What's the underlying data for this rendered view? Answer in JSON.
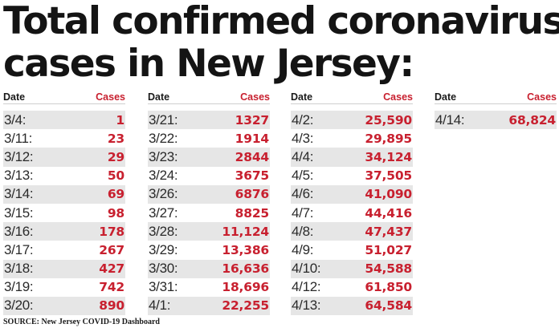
{
  "title": "Total confirmed coronavirus cases in New Jersey:",
  "title_line1": "Total confirmed coronavirus",
  "title_line2": "cases in New Jersey:",
  "header_date": "Date",
  "header_cases": "Cases",
  "source": "SOURCE: New Jersey COVID-19 Dashboard",
  "colors": {
    "cases": "#c8202f",
    "shade": "#e6e6e6",
    "text": "#1a1a1a"
  },
  "chart_data": {
    "type": "table",
    "columns": [
      "Date",
      "Cases"
    ],
    "rows": [
      {
        "date": "3/4:",
        "cases": "1"
      },
      {
        "date": "3/11:",
        "cases": "23"
      },
      {
        "date": "3/12:",
        "cases": "29"
      },
      {
        "date": "3/13:",
        "cases": "50"
      },
      {
        "date": "3/14:",
        "cases": "69"
      },
      {
        "date": "3/15:",
        "cases": "98"
      },
      {
        "date": "3/16:",
        "cases": "178"
      },
      {
        "date": "3/17:",
        "cases": "267"
      },
      {
        "date": "3/18:",
        "cases": "427"
      },
      {
        "date": "3/19:",
        "cases": "742"
      },
      {
        "date": "3/20:",
        "cases": "890"
      },
      {
        "date": "3/21:",
        "cases": "1327"
      },
      {
        "date": "3/22:",
        "cases": "1914"
      },
      {
        "date": "3/23:",
        "cases": "2844"
      },
      {
        "date": "3/24:",
        "cases": "3675"
      },
      {
        "date": "3/26:",
        "cases": "6876"
      },
      {
        "date": "3/27:",
        "cases": "8825"
      },
      {
        "date": "3/28:",
        "cases": "11,124"
      },
      {
        "date": "3/29:",
        "cases": "13,386"
      },
      {
        "date": "3/30:",
        "cases": "16,636"
      },
      {
        "date": "3/31:",
        "cases": "18,696"
      },
      {
        "date": "4/1:",
        "cases": "22,255"
      },
      {
        "date": "4/2:",
        "cases": "25,590"
      },
      {
        "date": "4/3:",
        "cases": "29,895"
      },
      {
        "date": "4/4:",
        "cases": "34,124"
      },
      {
        "date": "4/5:",
        "cases": "37,505"
      },
      {
        "date": "4/6:",
        "cases": "41,090"
      },
      {
        "date": "4/7:",
        "cases": "44,416"
      },
      {
        "date": "4/8:",
        "cases": "47,437"
      },
      {
        "date": "4/9:",
        "cases": "51,027"
      },
      {
        "date": "4/10:",
        "cases": "54,588"
      },
      {
        "date": "4/12:",
        "cases": "61,850"
      },
      {
        "date": "4/13:",
        "cases": "64,584"
      },
      {
        "date": "4/14:",
        "cases": "68,824"
      }
    ]
  }
}
